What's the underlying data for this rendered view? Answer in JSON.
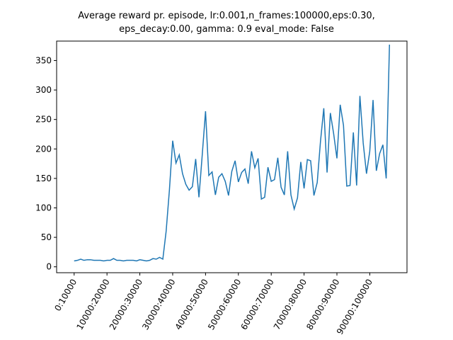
{
  "chart_data": {
    "type": "line",
    "title": [
      "Average reward pr. episode, lr:0.001,n_frames:100000,eps:0.30,",
      "eps_decay:0.00, gamma: 0.9 eval_mode: False"
    ],
    "categories": [
      "0:10000",
      null,
      null,
      null,
      null,
      null,
      null,
      null,
      null,
      null,
      "10000:20000",
      null,
      null,
      null,
      null,
      null,
      null,
      null,
      null,
      null,
      "20000:30000",
      null,
      null,
      null,
      null,
      null,
      null,
      null,
      null,
      null,
      "30000:40000",
      null,
      null,
      null,
      null,
      null,
      null,
      null,
      null,
      null,
      "40000:50000",
      null,
      null,
      null,
      null,
      null,
      null,
      null,
      null,
      null,
      "50000:60000",
      null,
      null,
      null,
      null,
      null,
      null,
      null,
      null,
      null,
      "60000:70000",
      null,
      null,
      null,
      null,
      null,
      null,
      null,
      null,
      null,
      "70000:80000",
      null,
      null,
      null,
      null,
      null,
      null,
      null,
      null,
      null,
      "80000:90000",
      null,
      null,
      null,
      null,
      null,
      null,
      null,
      null,
      null,
      "90000:100000",
      null,
      null,
      null,
      null,
      null,
      null
    ],
    "values": [
      10,
      11,
      13,
      11,
      12,
      12,
      11,
      11,
      11,
      10,
      11,
      11,
      14,
      11,
      11,
      10,
      11,
      11,
      11,
      10,
      12,
      11,
      10,
      11,
      14,
      13,
      16,
      13,
      60,
      130,
      214,
      176,
      190,
      158,
      140,
      130,
      136,
      183,
      118,
      190,
      264,
      155,
      161,
      122,
      152,
      158,
      145,
      121,
      162,
      180,
      144,
      160,
      166,
      141,
      196,
      168,
      184,
      115,
      118,
      169,
      145,
      148,
      185,
      135,
      122,
      196,
      122,
      98,
      117,
      178,
      133,
      182,
      180,
      121,
      143,
      213,
      269,
      160,
      261,
      226,
      184,
      275,
      240,
      137,
      138,
      228,
      138,
      290,
      210,
      158,
      196,
      283,
      163,
      192,
      207,
      150,
      377
    ],
    "color": "#1f77b4",
    "ylim": [
      -10,
      383
    ],
    "yticks": [
      0,
      50,
      100,
      150,
      200,
      250,
      300,
      350
    ]
  }
}
